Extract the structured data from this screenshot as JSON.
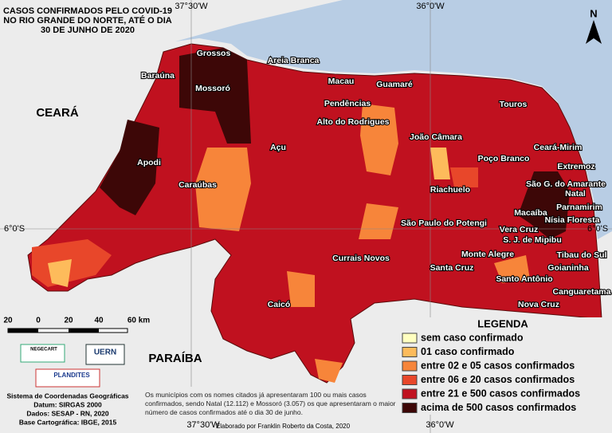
{
  "title": [
    "CASOS CONFIRMADOS PELO COVID-19",
    "NO RIO GRANDE DO NORTE, ATÉ O DIA",
    "30 DE JUNHO DE 2020"
  ],
  "graticule": {
    "top": [
      "37°30'W",
      "36°0'W"
    ],
    "bottom": [
      "37°30'W",
      "36°0'W"
    ],
    "left": "6°0'S",
    "right": "6°0'S"
  },
  "north": "N",
  "states": [
    "CEARÁ",
    "PARAÍBA"
  ],
  "scale": [
    "20",
    "0",
    "20",
    "40",
    "60 km"
  ],
  "cities": [
    "Grossos",
    "Areia Branca",
    "Baraúna",
    "Mossoró",
    "Macau",
    "Guamaré",
    "Pendências",
    "Touros",
    "Alto do Rodrigues",
    "João Câmara",
    "Açu",
    "Ceará-Mirim",
    "Apodi",
    "Poço Branco",
    "Extremoz",
    "Caraúbas",
    "Riachuelo",
    "São G. do Amarante",
    "Natal",
    "Parnamirim",
    "Macaíba",
    "Nísia Floresta",
    "São Paulo do Potengi",
    "Vera Cruz",
    "S. J. de Mipibu",
    "Tibau do Sul",
    "Monte Alegre",
    "Currais Novos",
    "Goianinha",
    "Santa Cruz",
    "Santo Antônio",
    "Canguaretama",
    "Caicó",
    "Nova Cruz"
  ],
  "legend": {
    "title": "LEGENDA",
    "items": [
      {
        "label": "sem caso confirmado",
        "color": "#ffffc0"
      },
      {
        "label": "01 caso confirmado",
        "color": "#fdbb5b"
      },
      {
        "label": "entre 02 e 05 casos confirmados",
        "color": "#f7853a"
      },
      {
        "label": "entre 06 e 20 casos confirmados",
        "color": "#e8472a"
      },
      {
        "label": "entre 21 e 500 casos confirmados",
        "color": "#c0111f"
      },
      {
        "label": "acima de 500 casos confirmados",
        "color": "#3d0707"
      }
    ]
  },
  "logos": [
    "NEGECART",
    "UERN",
    "PLANDITES"
  ],
  "footer": [
    "Sistema de Coordenadas Geográficas",
    "Datum: SIRGAS 2000",
    "Dados: SESAP - RN, 2020",
    "Base Cartográfica: IBGE, 2015"
  ],
  "note": "Os municípios com os nomes citados já apresentaram 100 ou mais casos confirmados, sendo Natal (12.112) e Mossoró (3.057) os que apresentaram o maior número de casos confirmados até o dia 30 de junho.",
  "credit": "Elaborado por Franklin Roberto da Costa, 2020"
}
